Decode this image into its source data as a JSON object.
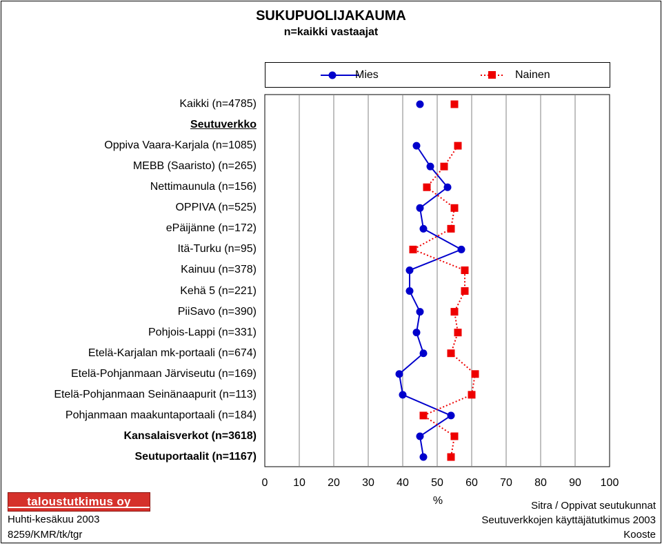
{
  "chart_data": {
    "type": "line",
    "title": "SUKUPUOLIJAKAUMA",
    "subtitle": "n=kaikki vastaajat",
    "xlabel": "%",
    "xlim": [
      0,
      100
    ],
    "xticks": [
      "0",
      "10",
      "20",
      "30",
      "40",
      "50",
      "60",
      "70",
      "80",
      "90",
      "100"
    ],
    "categories": [
      {
        "label": "Kaikki (n=4785)",
        "style": "normal",
        "mies": 45,
        "nainen": 55
      },
      {
        "label": "Seutuverkko",
        "style": "header",
        "mies": null,
        "nainen": null
      },
      {
        "label": "Oppiva Vaara-Karjala (n=1085)",
        "style": "normal",
        "mies": 44,
        "nainen": 56
      },
      {
        "label": "MEBB (Saaristo) (n=265)",
        "style": "normal",
        "mies": 48,
        "nainen": 52
      },
      {
        "label": "Nettimaunula (n=156)",
        "style": "normal",
        "mies": 53,
        "nainen": 47
      },
      {
        "label": "OPPIVA (n=525)",
        "style": "normal",
        "mies": 45,
        "nainen": 55
      },
      {
        "label": "ePäijänne (n=172)",
        "style": "normal",
        "mies": 46,
        "nainen": 54
      },
      {
        "label": "Itä-Turku (n=95)",
        "style": "normal",
        "mies": 57,
        "nainen": 43
      },
      {
        "label": "Kainuu (n=378)",
        "style": "normal",
        "mies": 42,
        "nainen": 58
      },
      {
        "label": "Kehä 5 (n=221)",
        "style": "normal",
        "mies": 42,
        "nainen": 58
      },
      {
        "label": "PiiSavo (n=390)",
        "style": "normal",
        "mies": 45,
        "nainen": 55
      },
      {
        "label": "Pohjois-Lappi (n=331)",
        "style": "normal",
        "mies": 44,
        "nainen": 56
      },
      {
        "label": "Etelä-Karjalan mk-portaali (n=674)",
        "style": "normal",
        "mies": 46,
        "nainen": 54
      },
      {
        "label": "Etelä-Pohjanmaan Järviseutu (n=169)",
        "style": "normal",
        "mies": 39,
        "nainen": 61
      },
      {
        "label": "Etelä-Pohjanmaan Seinänaapurit (n=113)",
        "style": "normal",
        "mies": 40,
        "nainen": 60
      },
      {
        "label": "Pohjanmaan maakuntaportaali (n=184)",
        "style": "normal",
        "mies": 54,
        "nainen": 46
      },
      {
        "label": "Kansalaisverkot (n=3618)",
        "style": "bold",
        "mies": 45,
        "nainen": 55
      },
      {
        "label": "Seutuportaalit (n=1167)",
        "style": "bold",
        "mies": 46,
        "nainen": 54
      }
    ],
    "series": [
      {
        "name": "Mies",
        "color": "#0000cc",
        "marker": "circle",
        "line": "solid"
      },
      {
        "name": "Nainen",
        "color": "#ee0000",
        "marker": "square",
        "line": "dotted"
      }
    ],
    "legend_position": "top",
    "grid": "vertical"
  },
  "footer": {
    "logo_text": "taloustutkimus oy",
    "date": "Huhti-kesäkuu 2003",
    "code": "8259/KMR/tk/tgr",
    "right1": "Sitra / Oppivat seutukunnat",
    "right2": "Seutuverkkojen käyttäjätutkimus 2003",
    "right3": "Kooste"
  }
}
